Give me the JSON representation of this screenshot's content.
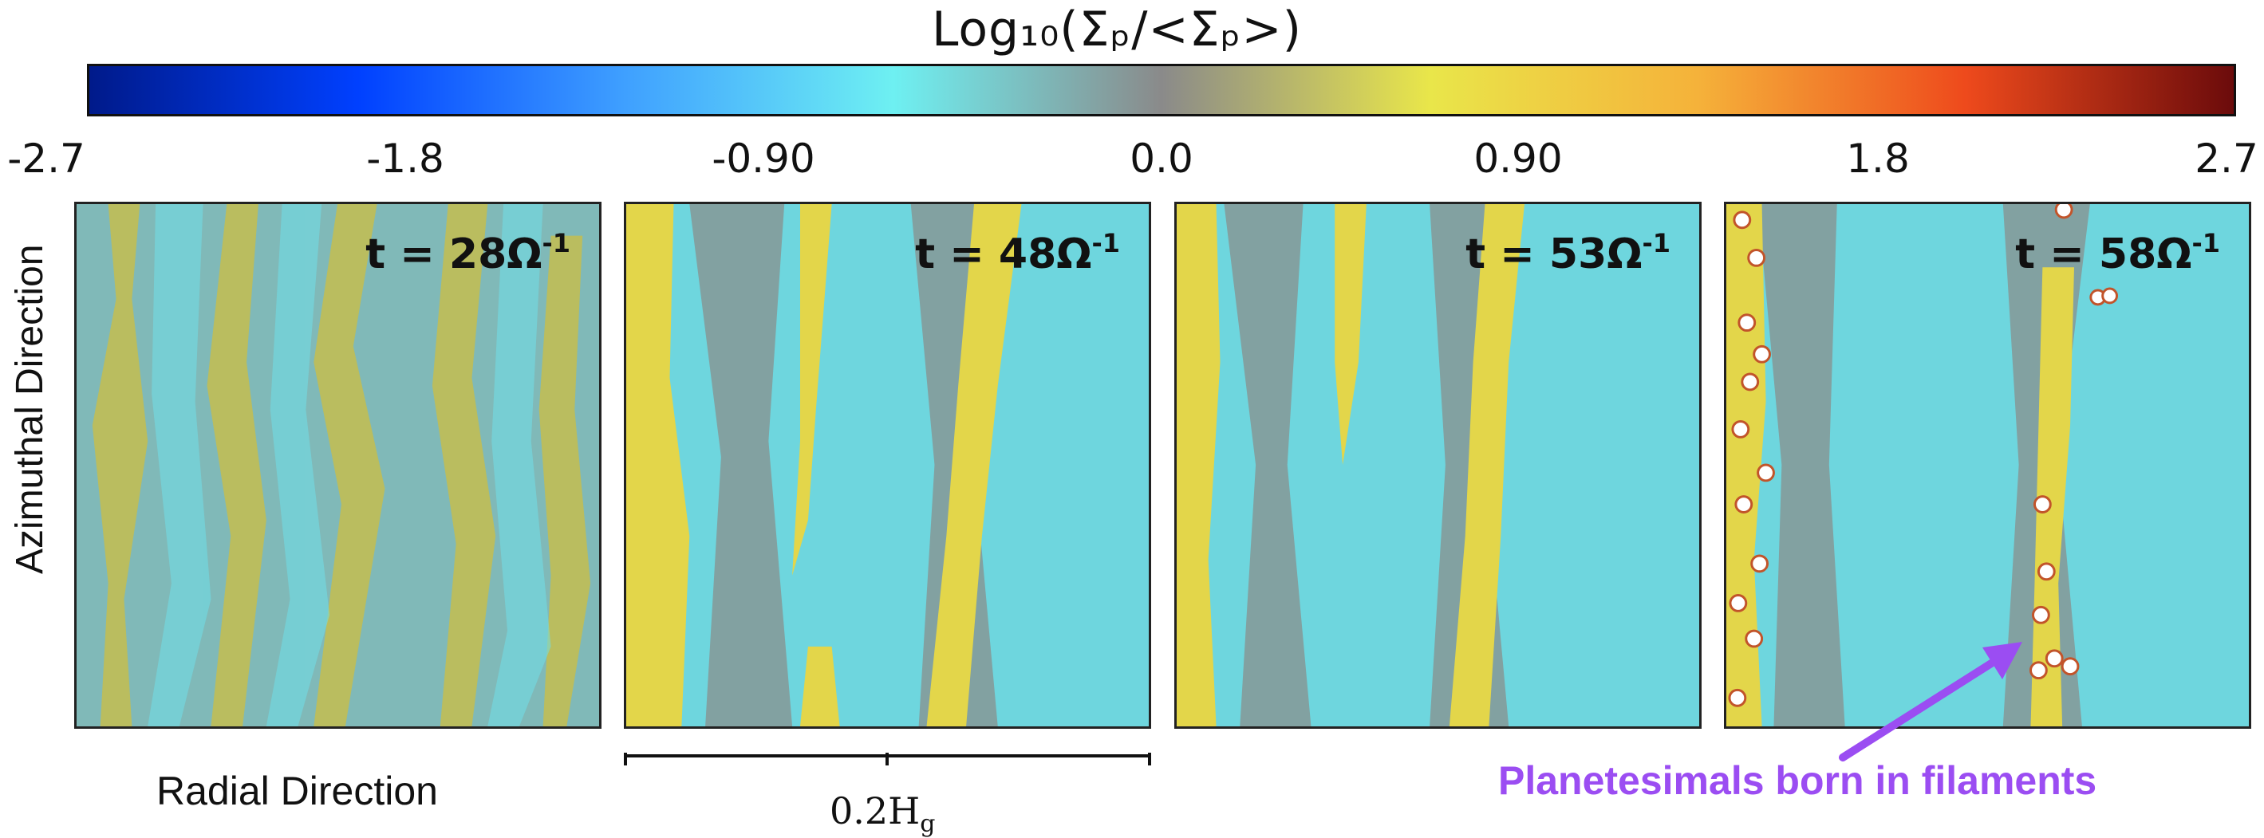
{
  "colorbar": {
    "title": "Log₁₀(Σₚ/<Σₚ>)",
    "ticks": [
      "-2.7",
      "-1.8",
      "-0.90",
      "0.0",
      "0.90",
      "1.8",
      "2.7"
    ],
    "colors": [
      "#001a8a",
      "#0040ff",
      "#3fa0ff",
      "#6ef0f2",
      "#8a8a8a",
      "#e9e64a",
      "#f5b23a",
      "#ee4a1c",
      "#6b0b0b"
    ]
  },
  "panels": [
    {
      "label": "t = 28Ω",
      "exponent": "-1"
    },
    {
      "label": "t = 48Ω",
      "exponent": "-1"
    },
    {
      "label": "t = 53Ω",
      "exponent": "-1"
    },
    {
      "label": "t = 58Ω",
      "exponent": "-1"
    }
  ],
  "axes": {
    "y_label": "Azimuthal Direction",
    "x_label": "Radial Direction"
  },
  "scale_bar": {
    "label": "0.2H",
    "subscript": "g"
  },
  "annotation": {
    "text": "Planetesimals born in filaments",
    "color": "#9b4df2"
  },
  "palette": {
    "cyan": "#6ed6de",
    "gray": "#8a8f8c",
    "yellow": "#e3d64a"
  }
}
